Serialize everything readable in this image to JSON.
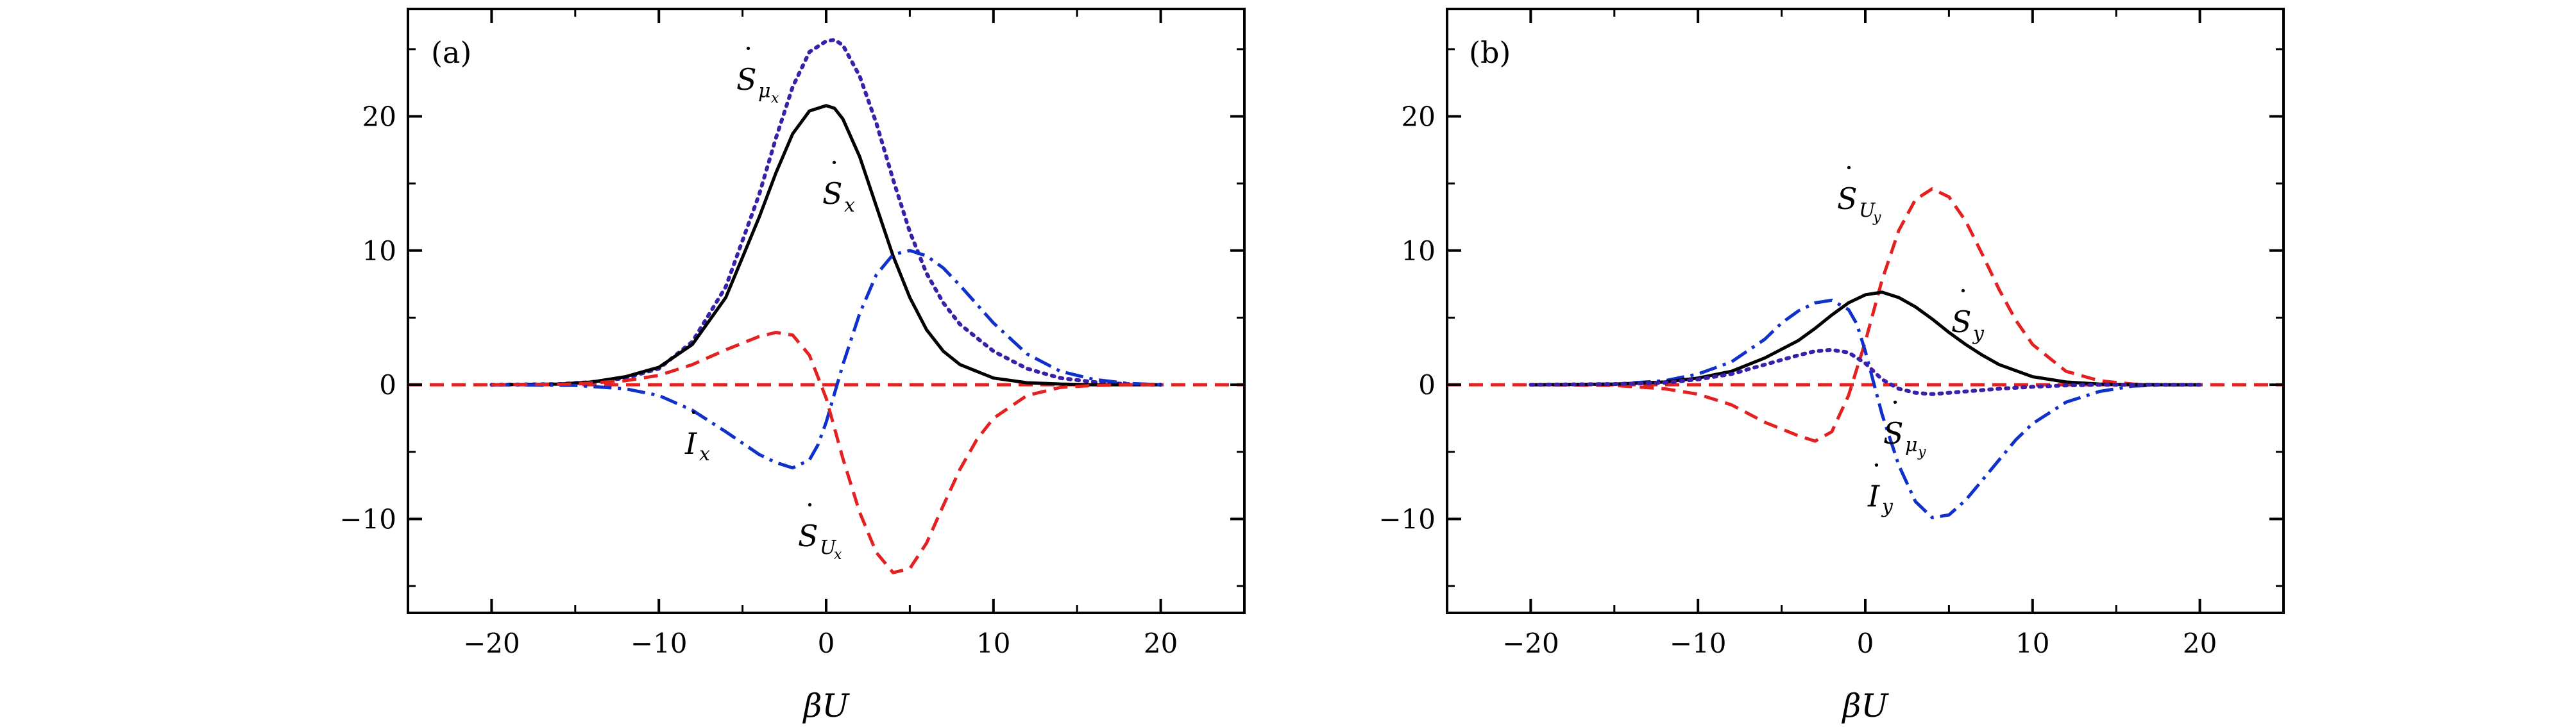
{
  "chart_data": [
    {
      "type": "line",
      "panel_label": "(a)",
      "xlabel": "βU",
      "ylabel": "",
      "xlim": [
        -25,
        25
      ],
      "ylim": [
        -17,
        28
      ],
      "xticks": [
        -20,
        -10,
        0,
        10,
        20
      ],
      "yticks": [
        -10,
        0,
        10,
        20
      ],
      "xtick_labels": [
        "−20",
        "−10",
        "0",
        "10",
        "20"
      ],
      "ytick_labels": [
        "−10",
        "0",
        "10",
        "20"
      ],
      "grid": false,
      "series": [
        {
          "key": "S_mu",
          "color": "#3b1fa8",
          "dash": "dotted",
          "x": [
            -20,
            -16,
            -14,
            -12,
            -10,
            -8,
            -6,
            -4,
            -3,
            -2,
            -1,
            0,
            0.5,
            1,
            2,
            3,
            4,
            5,
            6,
            7,
            8,
            10,
            12,
            14,
            16,
            18,
            20
          ],
          "y": [
            0,
            0.05,
            0.2,
            0.5,
            1.2,
            3.2,
            7.3,
            14.2,
            18.4,
            22.2,
            24.8,
            25.6,
            25.7,
            25.3,
            23.0,
            19.5,
            15.3,
            11.4,
            8.3,
            6.1,
            4.5,
            2.5,
            1.2,
            0.5,
            0.2,
            0.05,
            0
          ]
        },
        {
          "key": "S",
          "color": "#000000",
          "dash": "solid",
          "x": [
            -20,
            -16,
            -14,
            -12,
            -10,
            -8,
            -6,
            -4,
            -3,
            -2,
            -1,
            0,
            0.5,
            1,
            2,
            3,
            4,
            5,
            6,
            7,
            8,
            10,
            12,
            14,
            16,
            18,
            20
          ],
          "y": [
            0,
            0.05,
            0.2,
            0.6,
            1.3,
            3.0,
            6.5,
            12.5,
            15.8,
            18.7,
            20.4,
            20.8,
            20.6,
            19.8,
            17.0,
            13.3,
            9.6,
            6.5,
            4.1,
            2.5,
            1.5,
            0.5,
            0.15,
            0.05,
            0,
            0,
            0
          ]
        },
        {
          "key": "I",
          "color": "#1030cc",
          "dash": "dashdot",
          "x": [
            -20,
            -15,
            -12,
            -10,
            -8,
            -6,
            -4,
            -3,
            -2,
            -1,
            -0.5,
            0,
            1,
            2,
            3,
            4,
            5,
            6,
            7,
            8,
            9,
            10,
            12,
            14,
            16,
            18,
            20
          ],
          "y": [
            0,
            -0.05,
            -0.3,
            -0.8,
            -1.9,
            -3.5,
            -5.2,
            -5.8,
            -6.2,
            -5.6,
            -4.5,
            -2.8,
            1.5,
            5.3,
            8.2,
            9.7,
            10.0,
            9.6,
            8.7,
            7.4,
            6.0,
            4.6,
            2.3,
            1.0,
            0.4,
            0.1,
            0
          ]
        },
        {
          "key": "S_U",
          "color": "#e52020",
          "dash": "dashed",
          "x": [
            -20,
            -15,
            -12,
            -10,
            -8,
            -6,
            -4,
            -3,
            -2,
            -1,
            0,
            1,
            2,
            3,
            4,
            5,
            6,
            7,
            8,
            9,
            10,
            12,
            14,
            16,
            18,
            20
          ],
          "y": [
            0,
            0.05,
            0.3,
            0.7,
            1.5,
            2.6,
            3.6,
            3.9,
            3.7,
            2.2,
            -1.0,
            -5.5,
            -9.5,
            -12.5,
            -14.0,
            -13.7,
            -11.8,
            -9.0,
            -6.3,
            -4.1,
            -2.5,
            -0.8,
            -0.2,
            -0.05,
            0,
            0
          ]
        }
      ],
      "reference_line": {
        "y": 0,
        "color": "#e52020",
        "dash": "dashed"
      }
    },
    {
      "type": "line",
      "panel_label": "(b)",
      "xlabel": "βU",
      "ylabel": "",
      "xlim": [
        -25,
        25
      ],
      "ylim": [
        -17,
        28
      ],
      "xticks": [
        -20,
        -10,
        0,
        10,
        20
      ],
      "yticks": [
        -10,
        0,
        10,
        20
      ],
      "xtick_labels": [
        "−20",
        "−10",
        "0",
        "10",
        "20"
      ],
      "ytick_labels": [
        "−10",
        "0",
        "10",
        "20"
      ],
      "grid": false,
      "series": [
        {
          "key": "S_U",
          "color": "#e52020",
          "dash": "dashed",
          "x": [
            -20,
            -15,
            -12,
            -10,
            -8,
            -6,
            -4,
            -3,
            -2,
            -1,
            0,
            1,
            2,
            3,
            4,
            5,
            6,
            7,
            8,
            9,
            10,
            12,
            14,
            16,
            18,
            20
          ],
          "y": [
            0,
            -0.05,
            -0.3,
            -0.7,
            -1.5,
            -2.8,
            -3.8,
            -4.2,
            -3.5,
            -0.8,
            3.2,
            7.8,
            11.5,
            13.8,
            14.6,
            14.0,
            12.2,
            9.7,
            7.1,
            4.8,
            3.0,
            1.0,
            0.3,
            0.05,
            0,
            0
          ]
        },
        {
          "key": "I",
          "color": "#1030cc",
          "dash": "dashdot",
          "x": [
            -20,
            -15,
            -12,
            -10,
            -8,
            -6,
            -5,
            -4,
            -3,
            -2,
            -1,
            -0.5,
            0,
            1,
            2,
            3,
            4,
            5,
            6,
            7,
            8,
            9,
            10,
            12,
            14,
            16,
            18,
            20
          ],
          "y": [
            0,
            0.05,
            0.3,
            0.8,
            1.7,
            3.4,
            4.6,
            5.5,
            6.1,
            6.3,
            5.6,
            4.5,
            2.5,
            -2.2,
            -6.0,
            -8.7,
            -9.9,
            -9.7,
            -8.6,
            -7.1,
            -5.6,
            -4.1,
            -2.9,
            -1.3,
            -0.5,
            -0.1,
            0,
            0
          ]
        },
        {
          "key": "S",
          "color": "#000000",
          "dash": "solid",
          "x": [
            -20,
            -15,
            -12,
            -10,
            -8,
            -6,
            -4,
            -3,
            -2,
            -1,
            0,
            1,
            2,
            3,
            4,
            5,
            6,
            7,
            8,
            10,
            12,
            14,
            16,
            18,
            20
          ],
          "y": [
            0,
            0.05,
            0.2,
            0.5,
            1.0,
            2.0,
            3.3,
            4.2,
            5.2,
            6.1,
            6.7,
            6.9,
            6.5,
            5.8,
            4.9,
            3.9,
            3.0,
            2.2,
            1.5,
            0.6,
            0.2,
            0.05,
            0,
            0,
            0
          ]
        },
        {
          "key": "S_mu",
          "color": "#3b1fa8",
          "dash": "dotted",
          "x": [
            -20,
            -15,
            -12,
            -10,
            -8,
            -6,
            -4,
            -3,
            -2,
            -1,
            0,
            1,
            2,
            3,
            4,
            5,
            6,
            7,
            8,
            10,
            12,
            14,
            16,
            18,
            20
          ],
          "y": [
            0,
            0.05,
            0.15,
            0.4,
            0.8,
            1.5,
            2.2,
            2.5,
            2.6,
            2.4,
            1.6,
            0.4,
            -0.3,
            -0.6,
            -0.7,
            -0.6,
            -0.5,
            -0.4,
            -0.3,
            -0.15,
            -0.05,
            0,
            0,
            0,
            0
          ]
        }
      ],
      "reference_line": {
        "y": 0,
        "color": "#e52020",
        "dash": "dashed"
      }
    }
  ]
}
